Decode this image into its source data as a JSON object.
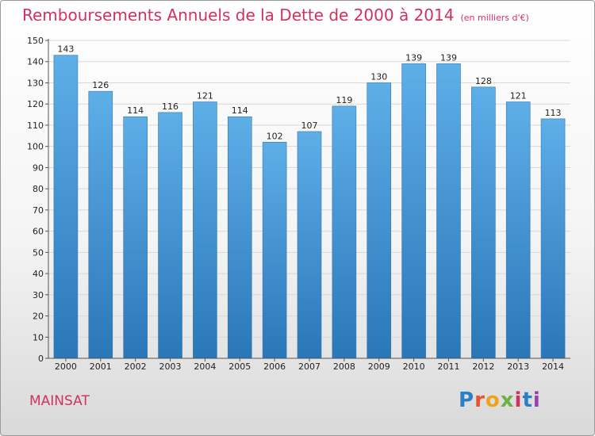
{
  "header": {
    "title": "Remboursements Annuels de la Dette de 2000 à 2014",
    "unit": "(en milliers d'€)"
  },
  "footer": {
    "place": "MAINSAT",
    "logo_text": "Proxiti",
    "logo_colors": [
      "#2a7fc9",
      "#e8532c",
      "#f2a11b",
      "#6bb244",
      "#d0325e",
      "#2a7fc9",
      "#9b3fae"
    ]
  },
  "colors": {
    "accent": "#d0325e",
    "bar_light": "#5eaee8",
    "bar_dark": "#2a77b8",
    "grid": "#d8d8d8"
  },
  "chart_data": {
    "type": "bar",
    "title": "Remboursements Annuels de la Dette de 2000 à 2014",
    "subtitle": "(en milliers d'€)",
    "xlabel": "",
    "ylabel": "",
    "categories": [
      "2000",
      "2001",
      "2002",
      "2003",
      "2004",
      "2005",
      "2006",
      "2007",
      "2008",
      "2009",
      "2010",
      "2011",
      "2012",
      "2013",
      "2014"
    ],
    "values": [
      143,
      126,
      114,
      116,
      121,
      114,
      102,
      107,
      119,
      130,
      139,
      139,
      128,
      121,
      113
    ],
    "ylim": [
      0,
      150
    ],
    "yticks": [
      0,
      10,
      20,
      30,
      40,
      50,
      60,
      70,
      80,
      90,
      100,
      110,
      120,
      130,
      140,
      150
    ],
    "grid": true,
    "legend": "none"
  }
}
